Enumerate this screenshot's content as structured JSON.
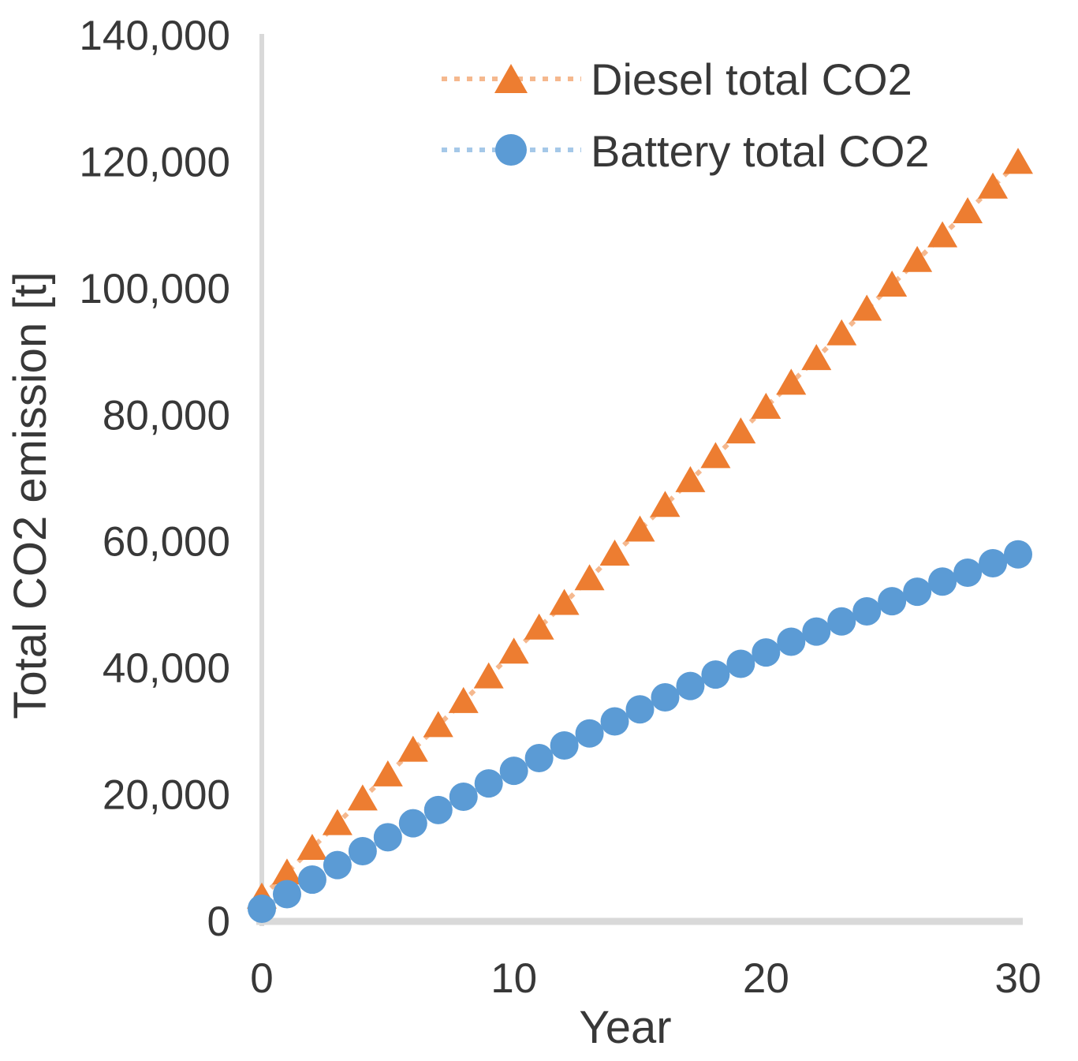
{
  "chart_data": {
    "type": "line",
    "title": "",
    "xlabel": "Year",
    "ylabel": "Total CO2 emission [t]",
    "xlim": [
      0,
      30
    ],
    "ylim": [
      0,
      140000
    ],
    "xticks": [
      0,
      10,
      20,
      30
    ],
    "yticks": [
      0,
      20000,
      40000,
      60000,
      80000,
      100000,
      120000,
      140000
    ],
    "grid": false,
    "legend_position": "top-right-inside",
    "line_style": "dotted",
    "x": [
      0,
      1,
      2,
      3,
      4,
      5,
      6,
      7,
      8,
      9,
      10,
      11,
      12,
      13,
      14,
      15,
      16,
      17,
      18,
      19,
      20,
      21,
      22,
      23,
      24,
      25,
      26,
      27,
      28,
      29,
      30
    ],
    "series": [
      {
        "name": "Diesel total CO2",
        "marker": "triangle",
        "color": "#ED7D31",
        "values": [
          3900,
          7700,
          11600,
          15500,
          19400,
          23200,
          27100,
          31000,
          34800,
          38700,
          42600,
          46400,
          50300,
          54200,
          58100,
          61900,
          65800,
          69700,
          73500,
          77400,
          81300,
          85100,
          89000,
          92900,
          96800,
          100600,
          104500,
          108400,
          112200,
          116100,
          120000
        ]
      },
      {
        "name": "Battery total CO2",
        "marker": "circle",
        "color": "#5B9BD5",
        "values": [
          2000,
          4300,
          6600,
          8900,
          11100,
          13300,
          15500,
          17600,
          19700,
          21800,
          23800,
          25800,
          27800,
          29700,
          31600,
          33500,
          35400,
          37200,
          39000,
          40700,
          42500,
          44200,
          45800,
          47400,
          49000,
          50600,
          52100,
          53700,
          55100,
          56600,
          58000
        ]
      }
    ],
    "colors": {
      "axis_line": "#D9D9D9",
      "text": "#383838"
    }
  }
}
